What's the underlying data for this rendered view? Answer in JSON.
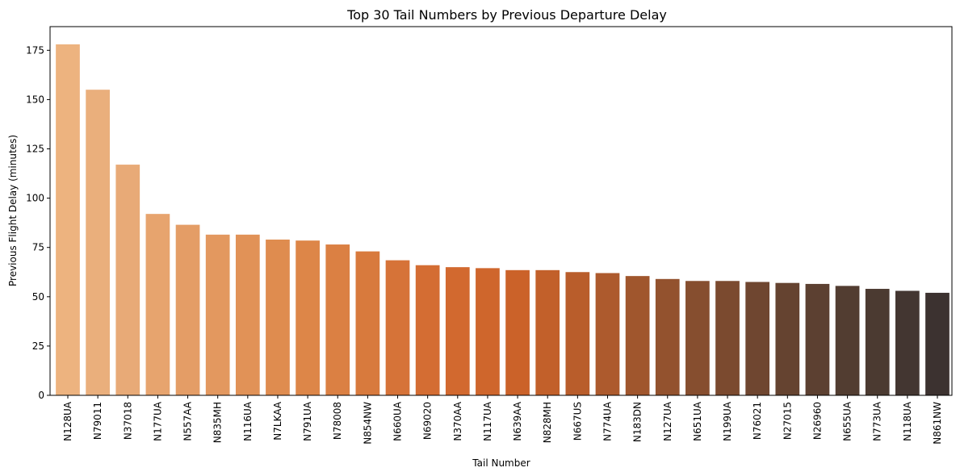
{
  "chart_data": {
    "type": "bar",
    "title": "Top 30 Tail Numbers by Previous Departure Delay",
    "xlabel": "Tail Number",
    "ylabel": "Previous Flight Delay (minutes)",
    "ylim": [
      0,
      187
    ],
    "yticks": [
      0,
      25,
      50,
      75,
      100,
      125,
      150,
      175
    ],
    "grid": false,
    "legend": "none",
    "categories": [
      "N128UA",
      "N79011",
      "N37018",
      "N177UA",
      "N557AA",
      "N835MH",
      "N116UA",
      "N7LKAA",
      "N791UA",
      "N78008",
      "N854NW",
      "N660UA",
      "N69020",
      "N370AA",
      "N117UA",
      "N639AA",
      "N828MH",
      "N667US",
      "N774UA",
      "N183DN",
      "N127UA",
      "N651UA",
      "N199UA",
      "N76021",
      "N27015",
      "N26960",
      "N655UA",
      "N773UA",
      "N118UA",
      "N861NW"
    ],
    "values": [
      178,
      155,
      117,
      92,
      86.5,
      81.5,
      81.5,
      79,
      78.5,
      76.5,
      73,
      68.5,
      66,
      65,
      64.5,
      63.5,
      63.5,
      62.5,
      62,
      60.5,
      59,
      58,
      58,
      57.5,
      57,
      56.5,
      55.5,
      54,
      53,
      52
    ],
    "colors": [
      "#edb37f",
      "#eaaf7c",
      "#e8aa77",
      "#e7a46e",
      "#e49d66",
      "#e3985f",
      "#e19257",
      "#df8c4f",
      "#dd8648",
      "#db8043",
      "#d87a3d",
      "#d67338",
      "#d46d33",
      "#d2692f",
      "#cf662c",
      "#cb6229",
      "#c2602a",
      "#b95d2b",
      "#ad5a2d",
      "#a0562d",
      "#93522e",
      "#864e2f",
      "#7b4a2f",
      "#6f4630",
      "#654330",
      "#5c4031",
      "#523d31",
      "#4b3a31",
      "#433631",
      "#3c3230"
    ]
  }
}
